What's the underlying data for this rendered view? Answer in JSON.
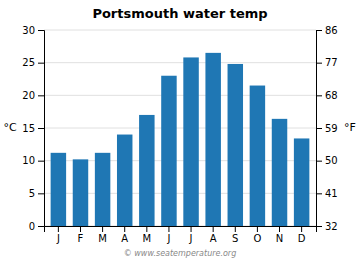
{
  "chart_data": {
    "type": "bar",
    "title": "Portsmouth water temp",
    "categories": [
      "J",
      "F",
      "M",
      "A",
      "M",
      "J",
      "J",
      "A",
      "S",
      "O",
      "N",
      "D"
    ],
    "values": [
      11.2,
      10.2,
      11.2,
      14.0,
      17.0,
      23.0,
      25.8,
      26.5,
      24.8,
      21.5,
      16.4,
      13.4
    ],
    "ylim": [
      0,
      30
    ],
    "yticks": [
      0,
      5,
      10,
      15,
      20,
      25,
      30
    ],
    "y2lim": [
      32,
      86
    ],
    "y2ticks": [
      32,
      41,
      50,
      59,
      68,
      77,
      86
    ],
    "ylabel": "°C",
    "y2label": "°F",
    "annotations": [
      "© www.seatemperature.org"
    ],
    "grid": true
  }
}
